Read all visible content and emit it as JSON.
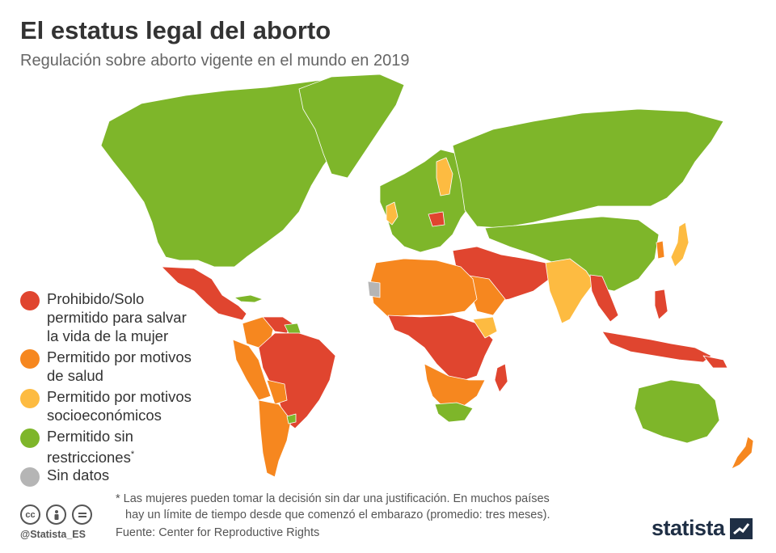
{
  "header": {
    "title": "El estatus legal del aborto",
    "subtitle": "Regulación sobre aborto vigente en el mundo en 2019"
  },
  "colors": {
    "prohibited": "#e0452f",
    "health": "#f6871f",
    "socioeconomic": "#fdbb41",
    "unrestricted": "#7eb62a",
    "nodata": "#b5b5b5"
  },
  "legend": {
    "items": [
      {
        "key": "prohibited",
        "line1": "Prohibido/Solo",
        "line2": "permitido para salvar",
        "line3": "la vida de la mujer"
      },
      {
        "key": "health",
        "line1": "Permitido por motivos",
        "line2": "de salud"
      },
      {
        "key": "socioeconomic",
        "line1": "Permitido por motivos",
        "line2": "socioeconómicos"
      },
      {
        "key": "unrestricted",
        "line1": "Permitido sin",
        "line2": "restricciones",
        "mark": "*"
      },
      {
        "key": "nodata",
        "line1": "Sin datos"
      }
    ]
  },
  "footnote": {
    "line1": "* Las mujeres pueden tomar la decisión sin dar una justificación. En muchos países",
    "line2": "hay un límite de tiempo desde que comenzó el embarazo (promedio: tres meses)."
  },
  "source": "Fuente: Center for Reproductive Rights",
  "branding": {
    "handle": "@Statista_ES",
    "logo": "statista",
    "license_icons": [
      "cc-icon",
      "by-icon",
      "nd-icon"
    ]
  }
}
